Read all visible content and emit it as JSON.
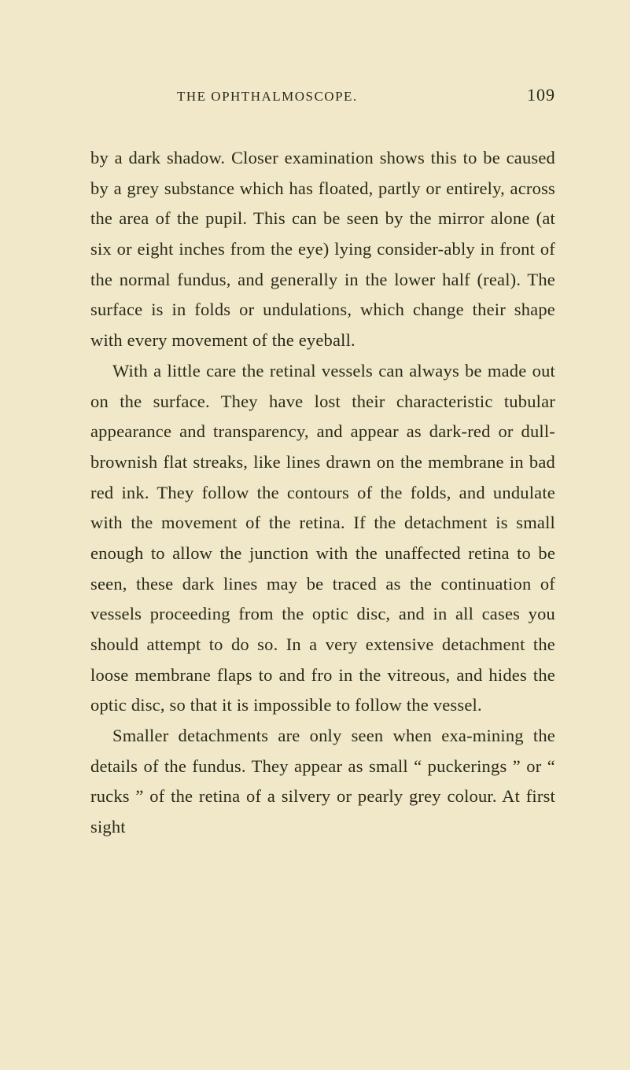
{
  "page": {
    "background_color": "#f0e8c8",
    "text_color": "#2a2a1a",
    "font_family": "Georgia, serif",
    "body_fontsize": 22.5,
    "header_fontsize": 17,
    "page_number_fontsize": 22,
    "line_height": 1.72,
    "running_head": "THE OPHTHALMOSCOPE.",
    "page_number": "109",
    "paragraphs": [
      "by a dark shadow. Closer examination shows this to be caused by a grey substance which has floated, partly or entirely, across the area of the pupil. This can be seen by the mirror alone (at six or eight inches from the eye) lying consider-ably in front of the normal fundus, and generally in the lower half (real). The surface is in folds or undulations, which change their shape with every movement of the eyeball.",
      "With a little care the retinal vessels can always be made out on the surface. They have lost their characteristic tubular appearance and transparency, and appear as dark-red or dull-brownish flat streaks, like lines drawn on the membrane in bad red ink. They follow the contours of the folds, and undulate with the movement of the retina. If the detachment is small enough to allow the junction with the unaffected retina to be seen, these dark lines may be traced as the continuation of vessels proceeding from the optic disc, and in all cases you should attempt to do so. In a very extensive detachment the loose membrane flaps to and fro in the vitreous, and hides the optic disc, so that it is impossible to follow the vessel.",
      "Smaller detachments are only seen when exa-mining the details of the fundus. They appear as small “ puckerings ” or “ rucks ” of the retina of a silvery or pearly grey colour. At first sight"
    ]
  }
}
